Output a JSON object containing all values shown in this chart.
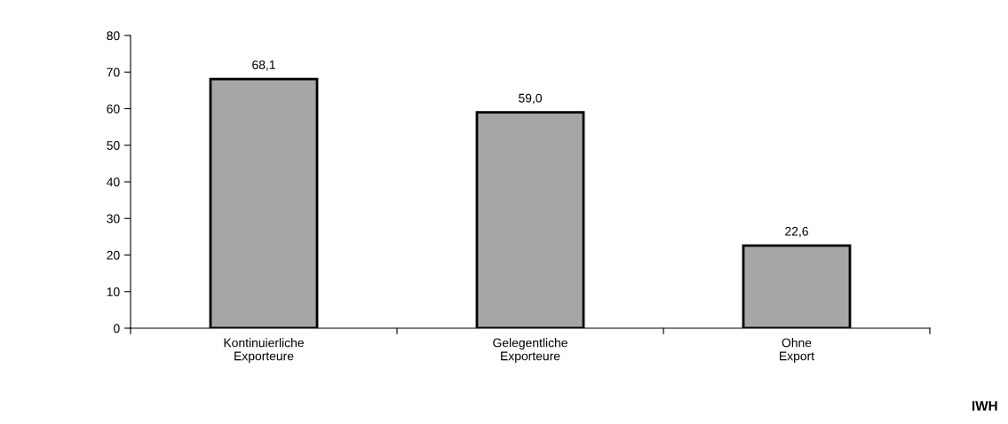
{
  "chart_data": {
    "type": "bar",
    "categories": [
      "Kontinuierliche\nExporteure",
      "Gelegentliche\nExporteure",
      "Ohne\nExport"
    ],
    "values": [
      68.1,
      59.0,
      22.6
    ],
    "value_labels": [
      "68,1",
      "59,0",
      "22,6"
    ],
    "color": "#a6a6a6",
    "ylim": [
      0,
      80
    ],
    "yticks": [
      0,
      10,
      20,
      30,
      40,
      50,
      60,
      70,
      80
    ],
    "grid": false,
    "legend": false,
    "annotations": [
      "IWH"
    ]
  }
}
